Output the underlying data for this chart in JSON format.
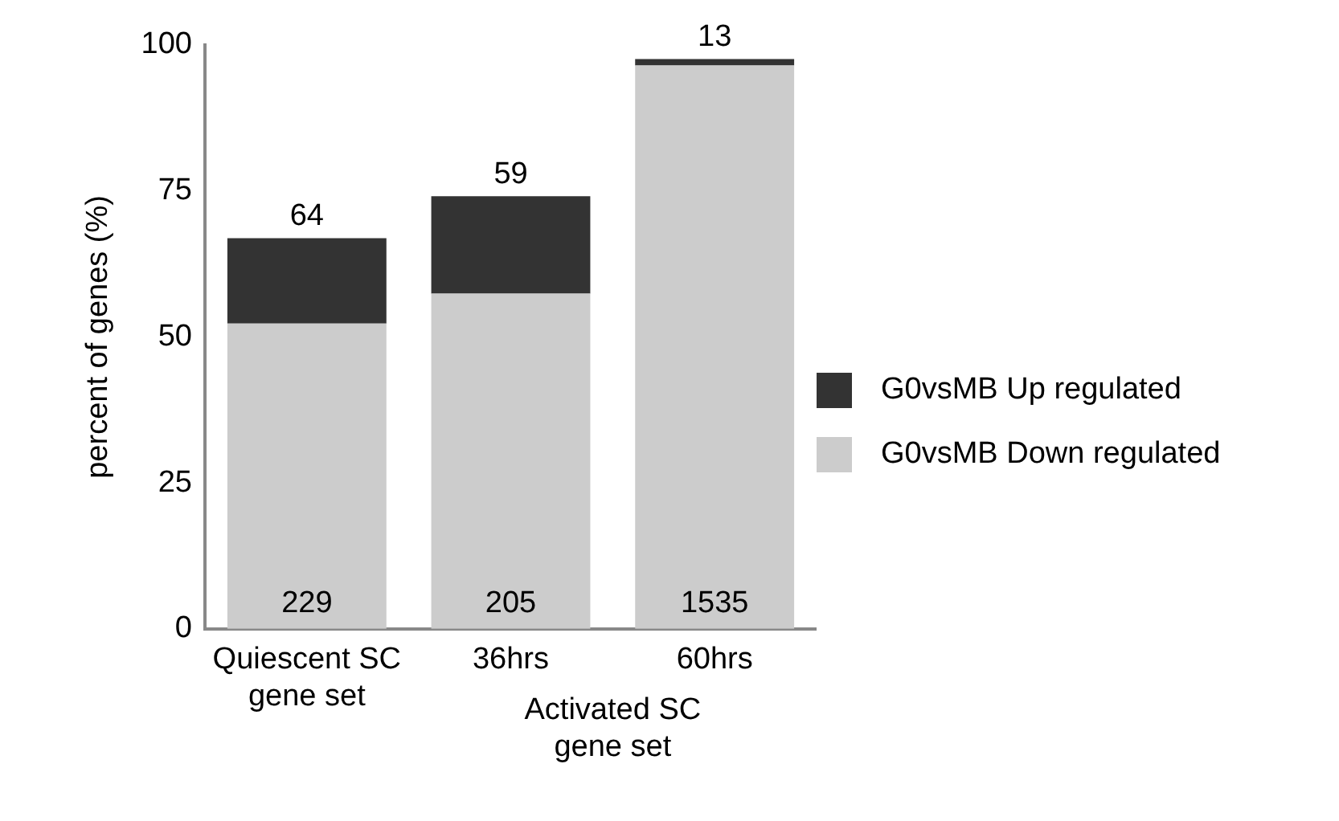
{
  "chart_data": {
    "type": "bar",
    "stacked": true,
    "categories": [
      "Quiescent SC gene set",
      "36hrs",
      "60hrs"
    ],
    "series": [
      {
        "name": "G0vsMB Down regulated",
        "color": "#cccccc",
        "values": [
          52.3,
          57.4,
          96.5
        ]
      },
      {
        "name": "G0vsMB Up regulated",
        "color": "#333333",
        "values": [
          14.6,
          16.7,
          1.1
        ]
      }
    ],
    "ylabel": "percent of genes (%)",
    "ylim": [
      0,
      100
    ],
    "yticks": [
      0,
      25,
      50,
      75,
      100
    ],
    "grid": false,
    "legend": "right",
    "annotations": [
      {
        "text": "229",
        "x": "Quiescent SC gene set",
        "y": 0
      },
      {
        "text": "205",
        "x": "36hrs",
        "y": 0
      },
      {
        "text": "1535",
        "x": "60hrs",
        "y": 0
      },
      {
        "text": "64",
        "x": "Quiescent SC gene set",
        "y": 66.9
      },
      {
        "text": "59",
        "x": "36hrs",
        "y": 74.1
      },
      {
        "text": "13",
        "x": "60hrs",
        "y": 97.6
      },
      "Activated SC gene set"
    ]
  }
}
